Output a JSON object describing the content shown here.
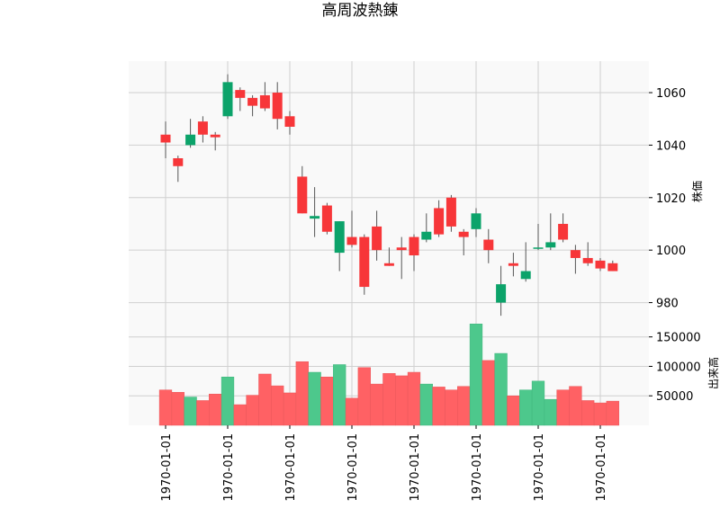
{
  "chart_data": {
    "type": "candlestick",
    "title": "高周波熱錬",
    "price_panel": {
      "ylabel": "株価",
      "ylim": [
        973,
        1072
      ],
      "yticks": [
        980,
        1000,
        1020,
        1040,
        1060
      ]
    },
    "volume_panel": {
      "ylabel": "出来高",
      "ylim": [
        0,
        177000
      ],
      "yticks": [
        50000,
        100000,
        150000
      ]
    },
    "x_tick_labels": [
      "1970-01-01",
      "1970-01-01",
      "1970-01-01",
      "1970-01-01",
      "1970-01-01",
      "1970-01-01",
      "1970-01-01",
      "1970-01-01"
    ],
    "x_tick_positions": [
      0,
      5,
      10,
      15,
      20,
      25,
      30,
      35
    ],
    "colors": {
      "up": "#0ca36a",
      "down": "#f73639",
      "up_volume": "#4dc88c",
      "down_volume": "#ff6164",
      "wick": "#555555",
      "panel_bg": "#f9f9f9",
      "grid": "#d0d0d0"
    },
    "candles": [
      {
        "o": 1044,
        "h": 1049,
        "l": 1035,
        "c": 1041
      },
      {
        "o": 1035,
        "h": 1036,
        "l": 1026,
        "c": 1032
      },
      {
        "o": 1040,
        "h": 1050,
        "l": 1039,
        "c": 1044
      },
      {
        "o": 1049,
        "h": 1051,
        "l": 1041,
        "c": 1044
      },
      {
        "o": 1044,
        "h": 1045,
        "l": 1038,
        "c": 1043
      },
      {
        "o": 1051,
        "h": 1067,
        "l": 1050,
        "c": 1064
      },
      {
        "o": 1061,
        "h": 1062,
        "l": 1053,
        "c": 1058
      },
      {
        "o": 1058,
        "h": 1059,
        "l": 1051,
        "c": 1055
      },
      {
        "o": 1059,
        "h": 1064,
        "l": 1053,
        "c": 1054
      },
      {
        "o": 1060,
        "h": 1064,
        "l": 1046,
        "c": 1050
      },
      {
        "o": 1051,
        "h": 1053,
        "l": 1044,
        "c": 1047
      },
      {
        "o": 1028,
        "h": 1032,
        "l": 1014,
        "c": 1014
      },
      {
        "o": 1012,
        "h": 1024,
        "l": 1005,
        "c": 1013
      },
      {
        "o": 1017,
        "h": 1018,
        "l": 1006,
        "c": 1007
      },
      {
        "o": 999,
        "h": 1011,
        "l": 992,
        "c": 1011
      },
      {
        "o": 1005,
        "h": 1015,
        "l": 1001,
        "c": 1002
      },
      {
        "o": 1005,
        "h": 1006,
        "l": 983,
        "c": 986
      },
      {
        "o": 1009,
        "h": 1015,
        "l": 996,
        "c": 1000
      },
      {
        "o": 995,
        "h": 1001,
        "l": 994,
        "c": 994
      },
      {
        "o": 1001,
        "h": 1005,
        "l": 989,
        "c": 1000
      },
      {
        "o": 1005,
        "h": 1006,
        "l": 992,
        "c": 998
      },
      {
        "o": 1004,
        "h": 1014,
        "l": 1003,
        "c": 1007
      },
      {
        "o": 1016,
        "h": 1019,
        "l": 1005,
        "c": 1006
      },
      {
        "o": 1020,
        "h": 1021,
        "l": 1007,
        "c": 1009
      },
      {
        "o": 1007,
        "h": 1008,
        "l": 998,
        "c": 1005
      },
      {
        "o": 1008,
        "h": 1016,
        "l": 1005,
        "c": 1014
      },
      {
        "o": 1004,
        "h": 1008,
        "l": 995,
        "c": 1000
      },
      {
        "o": 980,
        "h": 994,
        "l": 975,
        "c": 987
      },
      {
        "o": 995,
        "h": 999,
        "l": 990,
        "c": 994
      },
      {
        "o": 989,
        "h": 1003,
        "l": 988,
        "c": 992
      },
      {
        "o": 1001,
        "h": 1010,
        "l": 1000,
        "c": 1001
      },
      {
        "o": 1001,
        "h": 1014,
        "l": 1000,
        "c": 1003
      },
      {
        "o": 1010,
        "h": 1014,
        "l": 1003,
        "c": 1004
      },
      {
        "o": 1000,
        "h": 1002,
        "l": 991,
        "c": 997
      },
      {
        "o": 997,
        "h": 1003,
        "l": 994,
        "c": 995
      },
      {
        "o": 996,
        "h": 997,
        "l": 992,
        "c": 993
      },
      {
        "o": 995,
        "h": 996,
        "l": 992,
        "c": 992
      }
    ],
    "volumes": [
      60000,
      56000,
      48000,
      42000,
      53000,
      82000,
      35000,
      51000,
      87000,
      67000,
      55000,
      108000,
      90000,
      82000,
      103000,
      46000,
      98000,
      70000,
      88000,
      84000,
      90000,
      70000,
      65000,
      60000,
      66000,
      172000,
      110000,
      122000,
      50000,
      60000,
      75000,
      44000,
      60000,
      66000,
      42000,
      38000,
      41000
    ]
  }
}
